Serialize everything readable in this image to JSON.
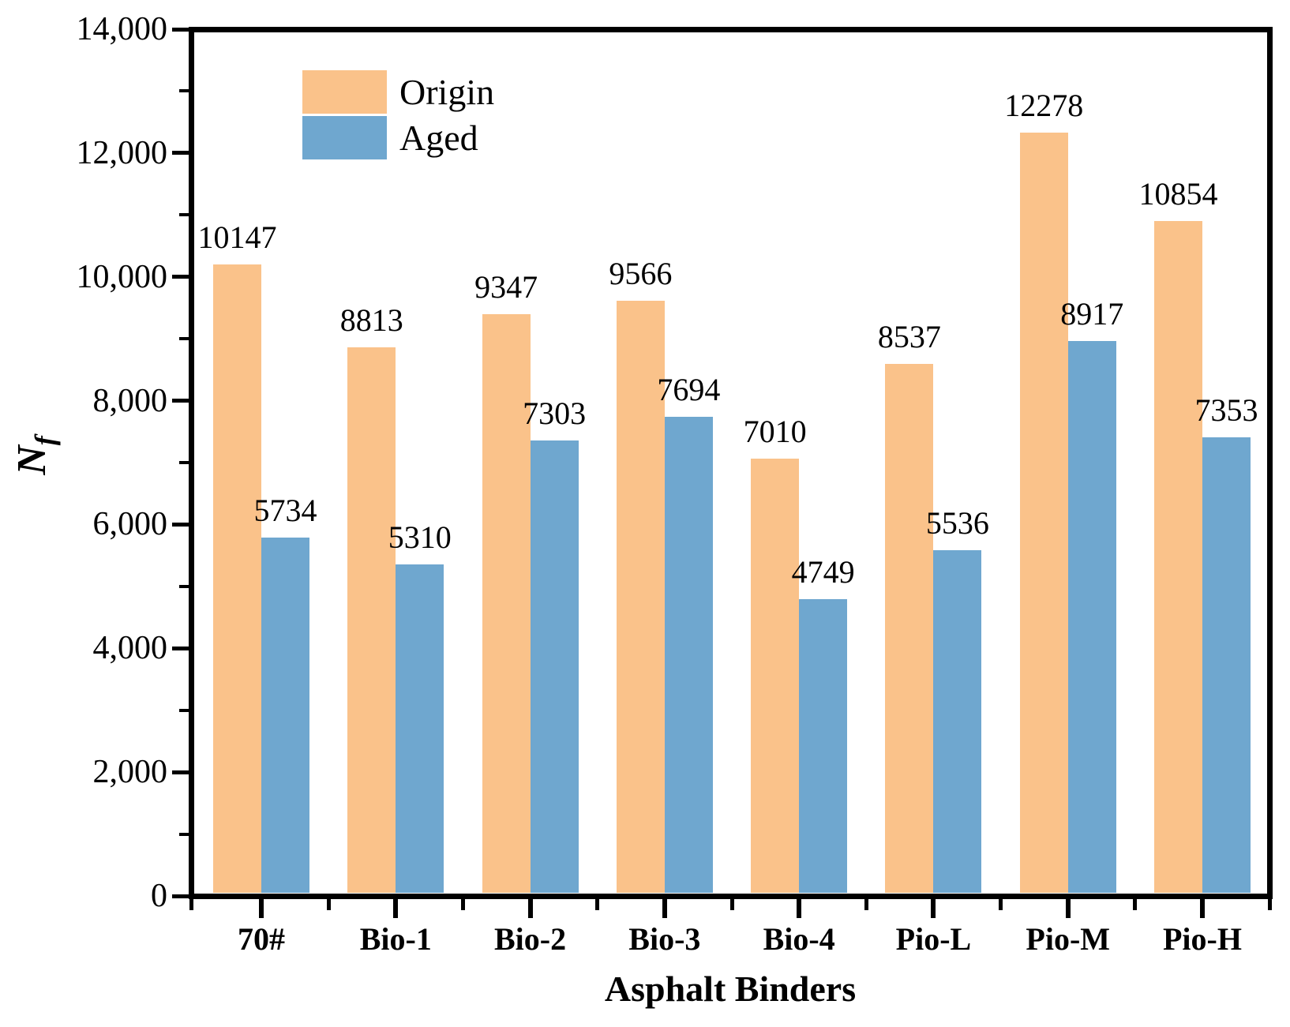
{
  "chart_data": {
    "type": "bar",
    "title": "",
    "xlabel": "Asphalt Binders",
    "ylabel_main": "N",
    "ylabel_sub": "f",
    "categories": [
      "70#",
      "Bio-1",
      "Bio-2",
      "Bio-3",
      "Bio-4",
      "Pio-L",
      "Pio-M",
      "Pio-H"
    ],
    "series": [
      {
        "name": "Origin",
        "color": "#FAC28A",
        "values": [
          10147,
          8813,
          9347,
          9566,
          7010,
          8537,
          12278,
          10854
        ]
      },
      {
        "name": "Aged",
        "color": "#6FA7CF",
        "values": [
          5734,
          5310,
          7303,
          7694,
          4749,
          5536,
          8917,
          7353
        ]
      }
    ],
    "ylim": [
      0,
      14000
    ],
    "ytick_step": 2000,
    "minor_tick_step": 1000,
    "ytick_labels": [
      "0",
      "2,000",
      "4,000",
      "6,000",
      "8,000",
      "10,000",
      "12,000",
      "14,000"
    ],
    "bar_value_labels_visible": true,
    "legend_position": "top-left",
    "grid": false,
    "axis_color": "#000000",
    "text_color": "#000000"
  }
}
